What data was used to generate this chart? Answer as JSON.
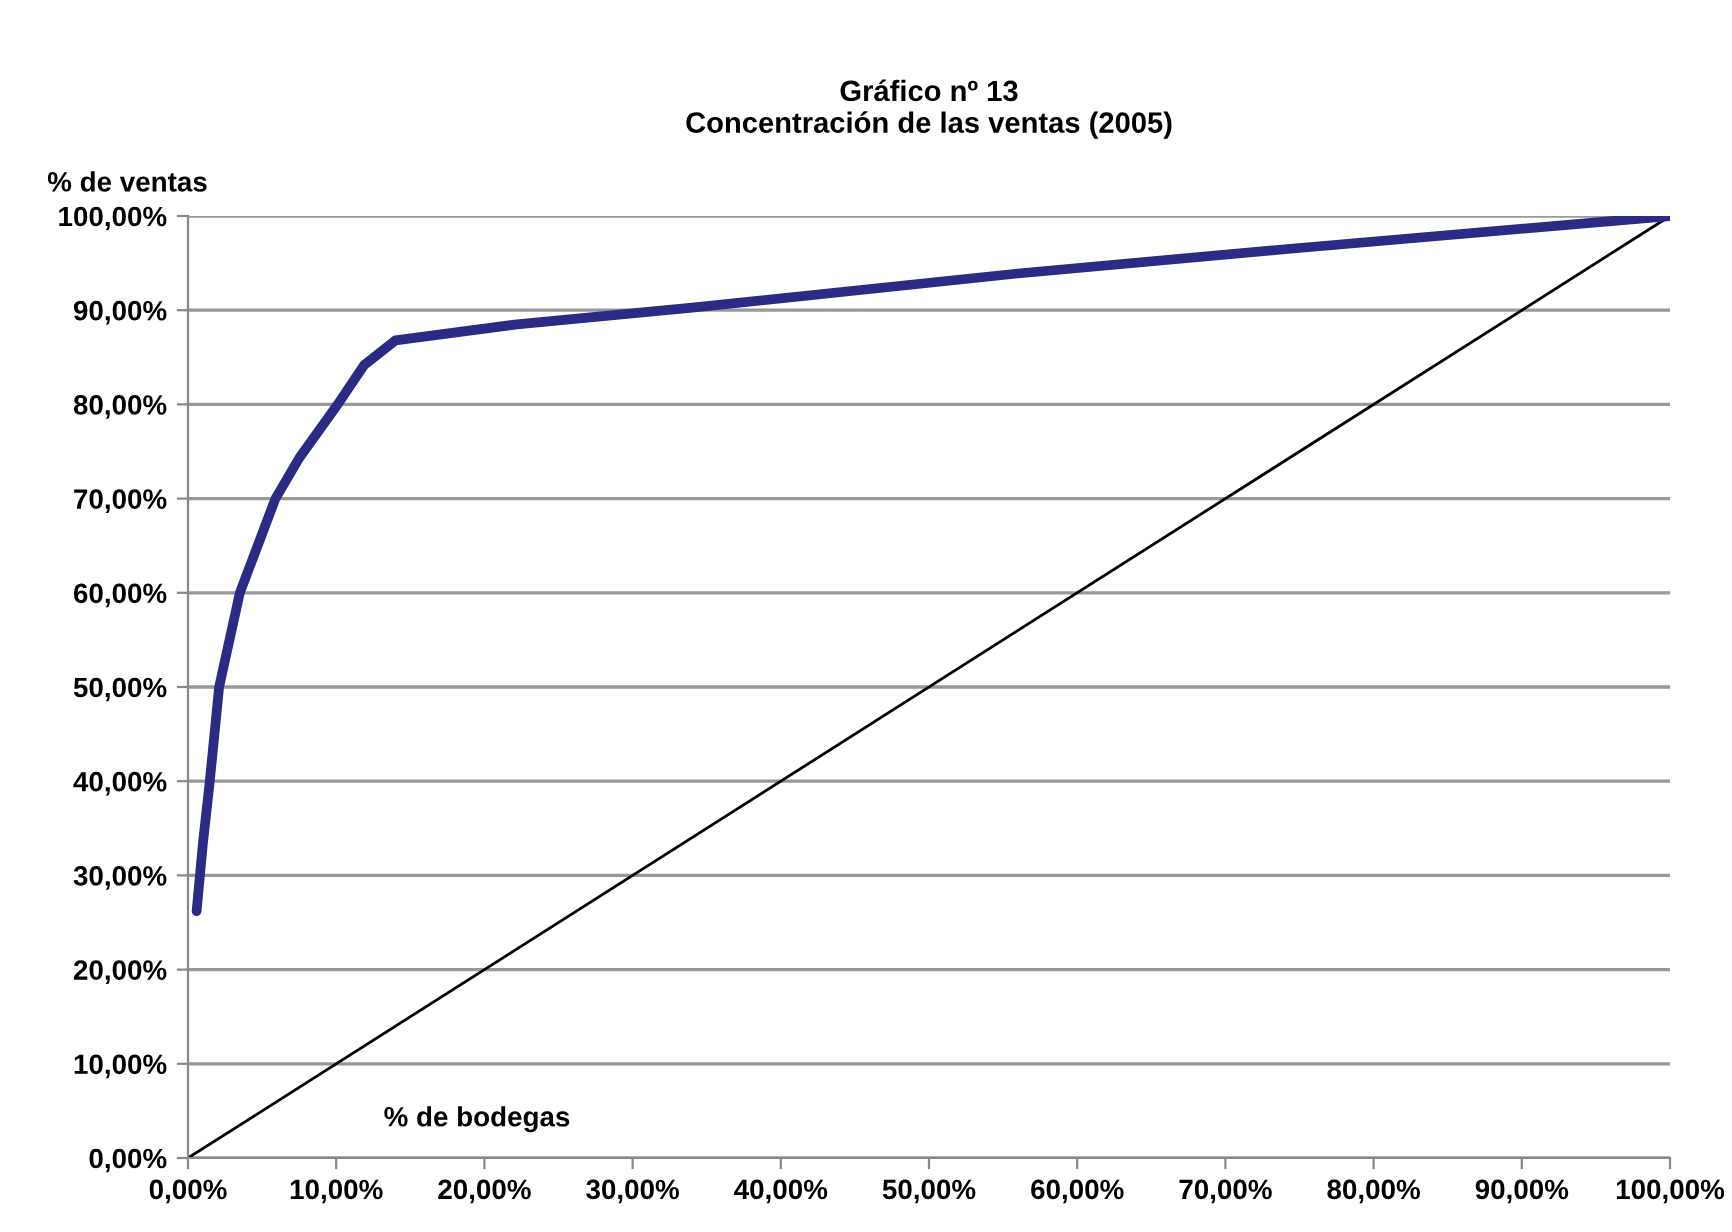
{
  "chart_data": {
    "type": "line",
    "title": "Gráfico nº 13\nConcentración de las ventas (2005)",
    "xlabel": "% de bodegas",
    "ylabel": "% de ventas",
    "series": [
      {
        "color": "#2b2b86",
        "x": [
          0.58,
          1.0,
          1.47,
          2.1,
          3.5,
          5.9,
          7.5,
          10.1,
          11.9,
          14.0,
          22.2,
          34.2,
          56.0,
          74.2,
          100
        ],
        "values": [
          26.2,
          33.3,
          40,
          50,
          60,
          70,
          74.3,
          80,
          84.2,
          86.8,
          88.5,
          90.3,
          93.9,
          96.5,
          100
        ]
      },
      {
        "color": "#000000",
        "x": [
          0,
          100
        ],
        "values": [
          0,
          100
        ]
      }
    ],
    "xlim": [
      0,
      100
    ],
    "ylim": [
      0,
      100
    ],
    "xticks": [
      {
        "value": 0,
        "label": "0,00%"
      },
      {
        "value": 10,
        "label": "10,00%"
      },
      {
        "value": 20,
        "label": "20,00%"
      },
      {
        "value": 30,
        "label": "30,00%"
      },
      {
        "value": 40,
        "label": "40,00%"
      },
      {
        "value": 50,
        "label": "50,00%"
      },
      {
        "value": 60,
        "label": "60,00%"
      },
      {
        "value": 70,
        "label": "70,00%"
      },
      {
        "value": 80,
        "label": "80,00%"
      },
      {
        "value": 90,
        "label": "90,00%"
      },
      {
        "value": 100,
        "label": "100,00%"
      }
    ],
    "yticks": [
      {
        "value": 0,
        "label": "0,00%"
      },
      {
        "value": 10,
        "label": "10,00%"
      },
      {
        "value": 20,
        "label": "20,00%"
      },
      {
        "value": 30,
        "label": "30,00%"
      },
      {
        "value": 40,
        "label": "40,00%"
      },
      {
        "value": 50,
        "label": "50,00%"
      },
      {
        "value": 60,
        "label": "60,00%"
      },
      {
        "value": 70,
        "label": "70,00%"
      },
      {
        "value": 80,
        "label": "80,00%"
      },
      {
        "value": 90,
        "label": "90,00%"
      },
      {
        "value": 100,
        "label": "100,00%"
      }
    ],
    "grid": "y",
    "legend": false,
    "marker": "none",
    "line_style": "solid"
  }
}
